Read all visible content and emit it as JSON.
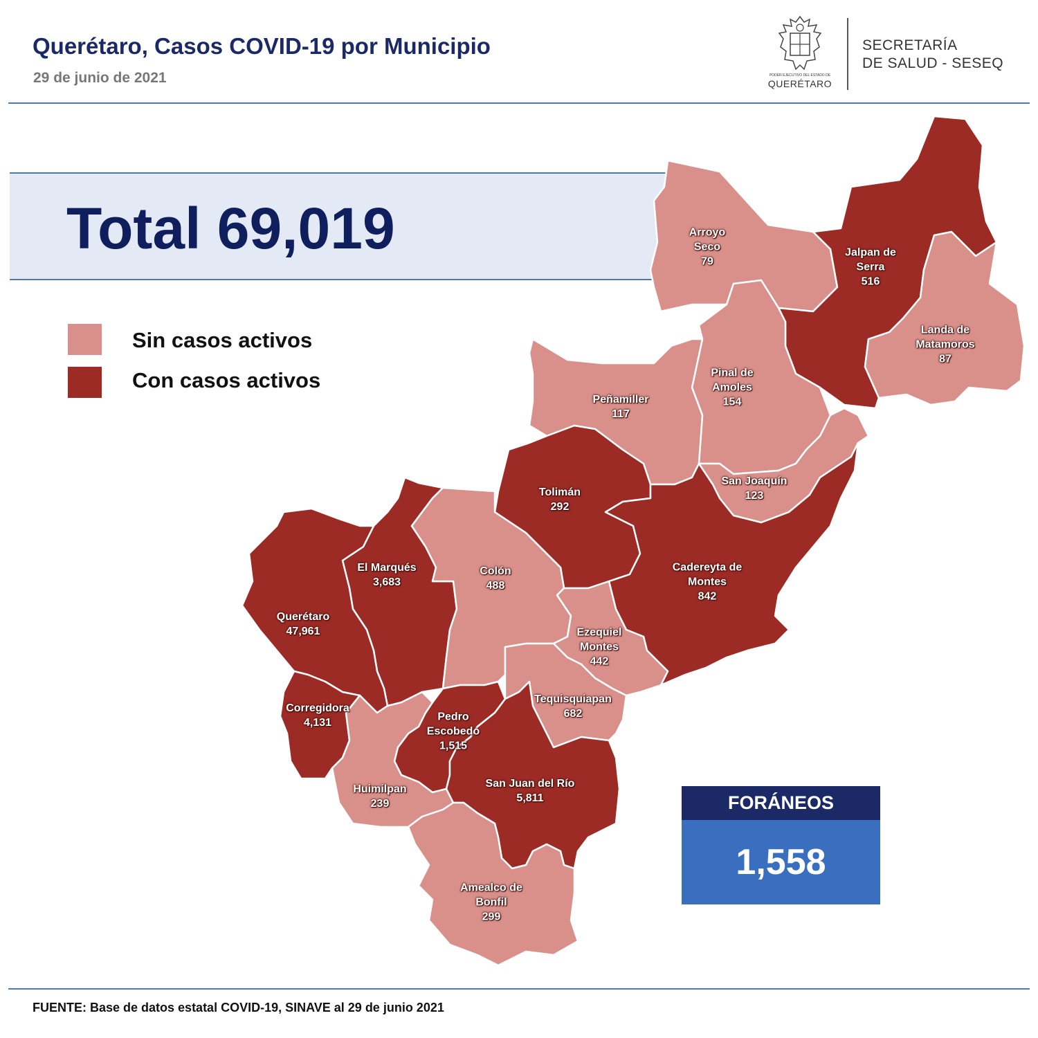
{
  "header": {
    "title": "Querétaro, Casos COVID-19 por Municipio",
    "date": "29 de junio de 2021",
    "logo_small_text": "PODER EJECUTIVO DEL ESTADO DE",
    "logo_name": "QUERÉTARO",
    "secretaria_line1": "SECRETARÍA",
    "secretaria_line2": "DE SALUD - SESEQ"
  },
  "total": "Total 69,019",
  "legend": [
    {
      "label": "Sin casos activos",
      "color": "#d9908a"
    },
    {
      "label": "Con casos activos",
      "color": "#9d2b25"
    }
  ],
  "municipios": [
    {
      "id": "arroyo-seco",
      "lines": [
        "Arroyo",
        "Seco"
      ],
      "cases": "79",
      "active": false
    },
    {
      "id": "jalpan-de-serra",
      "lines": [
        "Jalpan de",
        "Serra"
      ],
      "cases": "516",
      "active": true
    },
    {
      "id": "landa-de-matamoros",
      "lines": [
        "Landa de",
        "Matamoros"
      ],
      "cases": "87",
      "active": false
    },
    {
      "id": "pinal-de-amoles",
      "lines": [
        "Pinal de",
        "Amoles"
      ],
      "cases": "154",
      "active": false
    },
    {
      "id": "penamiller",
      "lines": [
        "Peñamiller"
      ],
      "cases": "117",
      "active": false
    },
    {
      "id": "san-joaquin",
      "lines": [
        "San Joaquín"
      ],
      "cases": "123",
      "active": false
    },
    {
      "id": "toliman",
      "lines": [
        "Tolimán"
      ],
      "cases": "292",
      "active": true
    },
    {
      "id": "cadereyta-de-montes",
      "lines": [
        "Cadereyta de",
        "Montes"
      ],
      "cases": "842",
      "active": true
    },
    {
      "id": "el-marques",
      "lines": [
        "El  Marqués"
      ],
      "cases": "3,683",
      "active": true
    },
    {
      "id": "colon",
      "lines": [
        "Colón"
      ],
      "cases": "488",
      "active": false
    },
    {
      "id": "queretaro",
      "lines": [
        "Querétaro"
      ],
      "cases": "47,961",
      "active": true
    },
    {
      "id": "ezequiel-montes",
      "lines": [
        "Ezequiel",
        "Montes"
      ],
      "cases": "442",
      "active": false
    },
    {
      "id": "tequisquiapan",
      "lines": [
        "Tequisquiapan"
      ],
      "cases": "682",
      "active": false
    },
    {
      "id": "corregidora",
      "lines": [
        "Corregidora"
      ],
      "cases": "4,131",
      "active": true
    },
    {
      "id": "pedro-escobedo",
      "lines": [
        "Pedro",
        "Escobedo"
      ],
      "cases": "1,515",
      "active": true
    },
    {
      "id": "huimilpan",
      "lines": [
        "Huimilpan"
      ],
      "cases": "239",
      "active": false
    },
    {
      "id": "san-juan-del-rio",
      "lines": [
        "San Juan del Río"
      ],
      "cases": "5,811",
      "active": true
    },
    {
      "id": "amealco-de-bonfil",
      "lines": [
        "Amealco de",
        "Bonfil"
      ],
      "cases": "299",
      "active": false
    }
  ],
  "foraneos": {
    "label": "FORÁNEOS",
    "value": "1,558"
  },
  "source": "FUENTE: Base de datos estatal COVID-19, SINAVE al 29 de junio 2021"
}
